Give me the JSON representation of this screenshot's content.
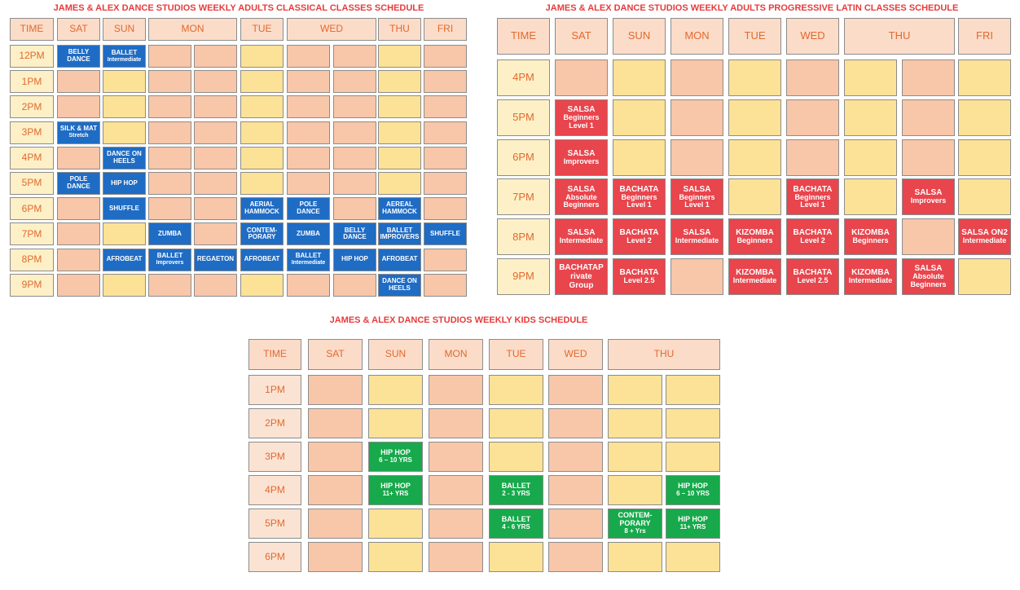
{
  "palette": {
    "peach": "#f8c6a9",
    "yellow": "#fbe296",
    "blue": "#1f6cc4",
    "red": "#e8454d",
    "green": "#17a94b"
  },
  "classical": {
    "title": "JAMES & ALEX DANCE STUDIOS WEEKLY ADULTS CLASSICAL CLASSES SCHEDULE",
    "headers": [
      "TIME",
      "SAT",
      "SUN",
      {
        "label": "MON",
        "cols": 2
      },
      "TUE",
      {
        "label": "WED",
        "cols": 2
      },
      "THU",
      "FRI"
    ],
    "rows": [
      {
        "time": "12PM",
        "cells": [
          {
            "fill": "blue",
            "label": "BELLY DANCE"
          },
          {
            "fill": "blue",
            "label": "BALLET",
            "sub": "Intermediate"
          },
          "peach",
          "peach",
          "yellow",
          "peach",
          "peach",
          "yellow",
          "peach"
        ]
      },
      {
        "time": "1PM",
        "cells": [
          "peach",
          "yellow",
          "peach",
          "peach",
          "yellow",
          "peach",
          "peach",
          "yellow",
          "peach"
        ]
      },
      {
        "time": "2PM",
        "cells": [
          "peach",
          "yellow",
          "peach",
          "peach",
          "yellow",
          "peach",
          "peach",
          "yellow",
          "peach"
        ]
      },
      {
        "time": "3PM",
        "cells": [
          {
            "fill": "blue",
            "label": "SILK & MAT",
            "sub": "Stretch"
          },
          "yellow",
          "peach",
          "peach",
          "yellow",
          "peach",
          "peach",
          "yellow",
          "peach"
        ]
      },
      {
        "time": "4PM",
        "cells": [
          "peach",
          {
            "fill": "blue",
            "label": "DANCE ON HEELS"
          },
          "peach",
          "peach",
          "yellow",
          "peach",
          "peach",
          "yellow",
          "peach"
        ]
      },
      {
        "time": "5PM",
        "cells": [
          {
            "fill": "blue",
            "label": "POLE DANCE"
          },
          {
            "fill": "blue",
            "label": "HIP HOP"
          },
          "peach",
          "peach",
          "yellow",
          "peach",
          "peach",
          "yellow",
          "peach"
        ]
      },
      {
        "time": "6PM",
        "cells": [
          "peach",
          {
            "fill": "blue",
            "label": "SHUFFLE"
          },
          "peach",
          "peach",
          {
            "fill": "blue",
            "label": "AERIAL HAMMOCK"
          },
          {
            "fill": "blue",
            "label": "POLE DANCE"
          },
          "peach",
          {
            "fill": "blue",
            "label": "AEREAL HAMMOCK"
          },
          "peach"
        ]
      },
      {
        "time": "7PM",
        "cells": [
          "peach",
          "yellow",
          {
            "fill": "blue",
            "label": "ZUMBA"
          },
          "peach",
          {
            "fill": "blue",
            "label": "CONTEM- PORARY"
          },
          {
            "fill": "blue",
            "label": "ZUMBA"
          },
          {
            "fill": "blue",
            "label": "BELLY DANCE"
          },
          {
            "fill": "blue",
            "label": "BALLET IMPROVERS"
          },
          {
            "fill": "blue",
            "label": "SHUFFLE"
          }
        ]
      },
      {
        "time": "8PM",
        "cells": [
          "peach",
          {
            "fill": "blue",
            "label": "AFROBEAT"
          },
          {
            "fill": "blue",
            "label": "BALLET",
            "sub": "Improvers"
          },
          {
            "fill": "blue",
            "label": "REGAETON"
          },
          {
            "fill": "blue",
            "label": "AFROBEAT"
          },
          {
            "fill": "blue",
            "label": "BALLET",
            "sub": "Intermediate"
          },
          {
            "fill": "blue",
            "label": "HIP HOP"
          },
          {
            "fill": "blue",
            "label": "AFROBEAT"
          },
          "peach"
        ]
      },
      {
        "time": "9PM",
        "cells": [
          "peach",
          "yellow",
          "peach",
          "peach",
          "yellow",
          "peach",
          "peach",
          {
            "fill": "blue",
            "label": "DANCE ON HEELS"
          },
          "peach"
        ]
      }
    ]
  },
  "latin": {
    "title": "JAMES & ALEX DANCE STUDIOS WEEKLY ADULTS PROGRESSIVE LATIN CLASSES SCHEDULE",
    "headers": [
      "TIME",
      "SAT",
      "SUN",
      "MON",
      "TUE",
      "WED",
      {
        "label": "THU",
        "cols": 2
      },
      "FRI"
    ],
    "rows": [
      {
        "time": "4PM",
        "cells": [
          "peach",
          "yellow",
          "peach",
          "yellow",
          "peach",
          "yellow",
          "peach",
          "yellow"
        ]
      },
      {
        "time": "5PM",
        "cells": [
          {
            "fill": "red",
            "label": "SALSA",
            "sub": "Beginners Level 1"
          },
          "yellow",
          "peach",
          "yellow",
          "peach",
          "yellow",
          "peach",
          "yellow"
        ]
      },
      {
        "time": "6PM",
        "cells": [
          {
            "fill": "red",
            "label": "SALSA",
            "sub": "Improvers"
          },
          "yellow",
          "peach",
          "yellow",
          "peach",
          "yellow",
          "peach",
          "yellow"
        ]
      },
      {
        "time": "7PM",
        "cells": [
          {
            "fill": "red",
            "label": "SALSA",
            "sub": "Absolute Beginners"
          },
          {
            "fill": "red",
            "label": "BACHATA",
            "sub": "Beginners Level 1"
          },
          {
            "fill": "red",
            "label": "SALSA",
            "sub": "Beginners Level 1"
          },
          "yellow",
          {
            "fill": "red",
            "label": "BACHATA",
            "sub": "Beginners Level 1"
          },
          "yellow",
          {
            "fill": "red",
            "label": "SALSA",
            "sub": "Improvers"
          },
          "yellow"
        ]
      },
      {
        "time": "8PM",
        "cells": [
          {
            "fill": "red",
            "label": "SALSA",
            "sub": "Intermediate"
          },
          {
            "fill": "red",
            "label": "BACHATA",
            "sub": "Level 2"
          },
          {
            "fill": "red",
            "label": "SALSA",
            "sub": "Intermediate"
          },
          {
            "fill": "red",
            "label": "KIZOMBA",
            "sub": "Beginners"
          },
          {
            "fill": "red",
            "label": "BACHATA",
            "sub": "Level 2"
          },
          {
            "fill": "red",
            "label": "KIZOMBA",
            "sub": "Beginners"
          },
          "peach",
          {
            "fill": "red",
            "label": "SALSA ON2",
            "sub": "Intermediate"
          }
        ]
      },
      {
        "time": "9PM",
        "cells": [
          {
            "fill": "red",
            "label": "BACHATAP rivate Group"
          },
          {
            "fill": "red",
            "label": "BACHATA",
            "sub": "Level 2.5"
          },
          "peach",
          {
            "fill": "red",
            "label": "KIZOMBA",
            "sub": "Intermediate"
          },
          {
            "fill": "red",
            "label": "BACHATA",
            "sub": "Level 2.5"
          },
          {
            "fill": "red",
            "label": "KIZOMBA",
            "sub": "Intermediate"
          },
          {
            "fill": "red",
            "label": "SALSA",
            "sub": "Absolute Beginners"
          },
          "yellow"
        ]
      }
    ]
  },
  "kids": {
    "title": "JAMES & ALEX DANCE STUDIOS WEEKLY KIDS SCHEDULE",
    "headers": [
      "TIME",
      "SAT",
      "SUN",
      "MON",
      "TUE",
      "WED",
      {
        "label": "THU",
        "cols": 2
      }
    ],
    "rows": [
      {
        "time": "1PM",
        "cells": [
          "peach",
          "yellow",
          "peach",
          "yellow",
          "peach",
          "yellow",
          "yellow"
        ]
      },
      {
        "time": "2PM",
        "cells": [
          "peach",
          "yellow",
          "peach",
          "yellow",
          "peach",
          "yellow",
          "yellow"
        ]
      },
      {
        "time": "3PM",
        "cells": [
          "peach",
          {
            "fill": "green",
            "label": "HIP HOP",
            "sub": "6 – 10 YRS"
          },
          "peach",
          "yellow",
          "peach",
          "yellow",
          "yellow"
        ]
      },
      {
        "time": "4PM",
        "cells": [
          "peach",
          {
            "fill": "green",
            "label": "HIP HOP",
            "sub": "11+ YRS"
          },
          "peach",
          {
            "fill": "green",
            "label": "BALLET",
            "sub": "2 - 3 YRS"
          },
          "peach",
          "yellow",
          {
            "fill": "green",
            "label": "HIP HOP",
            "sub": "6 – 10 YRS"
          }
        ]
      },
      {
        "time": "5PM",
        "cells": [
          "peach",
          "yellow",
          "peach",
          {
            "fill": "green",
            "label": "BALLET",
            "sub": "4 - 6 YRS"
          },
          "peach",
          {
            "fill": "green",
            "label": "CONTEM- PORARY",
            "sub": "8 + Yrs"
          },
          {
            "fill": "green",
            "label": "HIP HOP",
            "sub": "11+ YRS"
          }
        ]
      },
      {
        "time": "6PM",
        "cells": [
          "peach",
          "yellow",
          "peach",
          "yellow",
          "peach",
          "yellow",
          "yellow"
        ]
      }
    ]
  }
}
